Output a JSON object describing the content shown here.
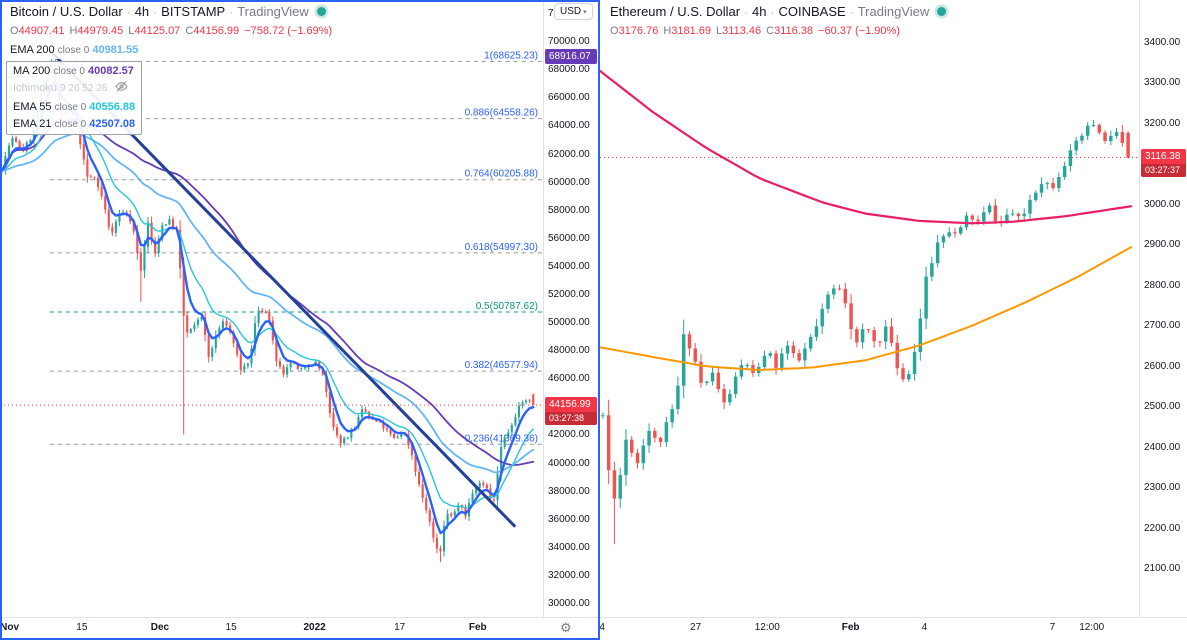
{
  "ui": {
    "sep": "·",
    "left": {
      "title": {
        "symbol": "Bitcoin / U.S. Dollar",
        "interval": "4h",
        "exchange": "BITSTAMP",
        "brand": "TradingView"
      },
      "ohlc": [
        {
          "k": "O",
          "v": "44907.41"
        },
        {
          "k": "H",
          "v": "44979.45"
        },
        {
          "k": "L",
          "v": "44125.07"
        },
        {
          "k": "C",
          "v": "44156.99"
        }
      ],
      "change": "−758.72 (−1.69%)",
      "indicator_row": {
        "label": "EMA 200",
        "params": "close 0",
        "value": "40981.55",
        "color": "#64b5f6"
      },
      "indicator_group": [
        {
          "label": "MA 200",
          "params": "close 0",
          "value": "40082.57",
          "color": "#673ab7"
        },
        {
          "label": "Ichimoku",
          "params": "9 26 52 26",
          "value": "",
          "color": "#c6c9d0"
        },
        {
          "label": "EMA 55",
          "params": "close 0",
          "value": "40556.88",
          "color": "#26c6da"
        },
        {
          "label": "EMA 21",
          "params": "close 0",
          "value": "42507.08",
          "color": "#2962ff"
        }
      ],
      "currency_button": "USD"
    },
    "right": {
      "title": {
        "symbol": "Ethereum / U.S. Dollar",
        "interval": "4h",
        "exchange": "COINBASE",
        "brand": "TradingView"
      },
      "ohlc": [
        {
          "k": "O",
          "v": "3176.76"
        },
        {
          "k": "H",
          "v": "3181.69"
        },
        {
          "k": "L",
          "v": "3113.46"
        },
        {
          "k": "C",
          "v": "3116.38"
        }
      ],
      "change": "−60.37 (−1.90%)"
    }
  },
  "chart_data": [
    {
      "type": "candlestick",
      "title": "Bitcoin / U.S. Dollar",
      "interval": "4h",
      "exchange": "BITSTAMP",
      "ohlc_current": {
        "open": 44907.41,
        "high": 44979.45,
        "low": 44125.07,
        "close": 44156.99
      },
      "change": -758.72,
      "change_pct": -1.69,
      "candle_colors": {
        "up": "#26a69a",
        "down": "#ef5350"
      },
      "y_axis": {
        "range": [
          29000,
          73000
        ],
        "ticks": {
          "min": 30000,
          "max": 72000,
          "step": 2000
        }
      },
      "x_labels": [
        {
          "text": "Nov",
          "f": 0.018,
          "bold": true
        },
        {
          "text": "15",
          "f": 0.153
        },
        {
          "text": "Dec",
          "f": 0.299,
          "bold": true
        },
        {
          "text": "15",
          "f": 0.432
        },
        {
          "text": "2022",
          "f": 0.588,
          "bold": true
        },
        {
          "text": "17",
          "f": 0.747
        },
        {
          "text": "Feb",
          "f": 0.893,
          "bold": true
        }
      ],
      "synthesis": {
        "num_candles": 150,
        "seed": 7,
        "volatility": 320,
        "close_anchors": [
          [
            0,
            61000
          ],
          [
            0.018,
            63200
          ],
          [
            0.04,
            62300
          ],
          [
            0.06,
            63500
          ],
          [
            0.075,
            66500
          ],
          [
            0.095,
            68700
          ],
          [
            0.11,
            64900
          ],
          [
            0.13,
            65200
          ],
          [
            0.145,
            63400
          ],
          [
            0.16,
            60400
          ],
          [
            0.175,
            60300
          ],
          [
            0.19,
            58800
          ],
          [
            0.205,
            56300
          ],
          [
            0.225,
            58100
          ],
          [
            0.245,
            57200
          ],
          [
            0.262,
            53600
          ],
          [
            0.275,
            57200
          ],
          [
            0.287,
            54700
          ],
          [
            0.3,
            56900
          ],
          [
            0.315,
            57300
          ],
          [
            0.33,
            56500
          ],
          [
            0.345,
            49200
          ],
          [
            0.36,
            49600
          ],
          [
            0.375,
            50700
          ],
          [
            0.39,
            47400
          ],
          [
            0.405,
            49400
          ],
          [
            0.42,
            50200
          ],
          [
            0.435,
            48800
          ],
          [
            0.45,
            46700
          ],
          [
            0.465,
            47000
          ],
          [
            0.48,
            50800
          ],
          [
            0.5,
            50900
          ],
          [
            0.515,
            47500
          ],
          [
            0.53,
            46200
          ],
          [
            0.545,
            47300
          ],
          [
            0.56,
            46500
          ],
          [
            0.575,
            47100
          ],
          [
            0.59,
            47200
          ],
          [
            0.605,
            46300
          ],
          [
            0.62,
            42900
          ],
          [
            0.635,
            41500
          ],
          [
            0.65,
            41900
          ],
          [
            0.665,
            42700
          ],
          [
            0.68,
            43900
          ],
          [
            0.695,
            43100
          ],
          [
            0.71,
            42900
          ],
          [
            0.725,
            42300
          ],
          [
            0.74,
            41700
          ],
          [
            0.755,
            42400
          ],
          [
            0.77,
            40900
          ],
          [
            0.785,
            38500
          ],
          [
            0.8,
            36500
          ],
          [
            0.815,
            34300
          ],
          [
            0.825,
            33600
          ],
          [
            0.835,
            36300
          ],
          [
            0.85,
            36500
          ],
          [
            0.862,
            37300
          ],
          [
            0.872,
            36300
          ],
          [
            0.885,
            37800
          ],
          [
            0.9,
            38600
          ],
          [
            0.915,
            38100
          ],
          [
            0.925,
            36900
          ],
          [
            0.94,
            41400
          ],
          [
            0.955,
            42400
          ],
          [
            0.97,
            43800
          ],
          [
            0.985,
            44600
          ],
          [
            1,
            44156.99
          ]
        ],
        "high_marks": [
          {
            "f": 0.095,
            "price": 68916.07
          }
        ],
        "low_marks": [
          {
            "f": 0.262,
            "price": 51500
          },
          {
            "f": 0.345,
            "price": 42050
          },
          {
            "f": 0.825,
            "price": 32970
          }
        ]
      },
      "moving_averages": [
        {
          "name": "MA 200",
          "period": 200,
          "type": "sma",
          "window": 52,
          "color": "#673ab7",
          "width": 1.8
        },
        {
          "name": "EMA 200",
          "period": 200,
          "type": "ema",
          "window": 40,
          "color": "#64b5f6",
          "width": 1.8
        },
        {
          "name": "EMA 55",
          "period": 55,
          "type": "ema",
          "window": 13,
          "color": "#26c6da",
          "width": 1.4
        },
        {
          "name": "EMA 21",
          "period": 21,
          "type": "ema",
          "window": 5,
          "color": "#2962ff",
          "width": 2.4
        }
      ],
      "trendline": {
        "from": [
          0.093,
          69400
        ],
        "to": [
          0.963,
          35500
        ],
        "color": "#24419a",
        "width": 3
      },
      "fib_retracement": {
        "start_f": 0.093,
        "line_color": "#9598a1",
        "levels": [
          {
            "ratio": 1,
            "price": 68625.23,
            "label": "1(68625.23)",
            "color": "#2962ff"
          },
          {
            "ratio": 0.886,
            "price": 64558.26,
            "label": "0.886(64558.26)",
            "color": "#2962ff"
          },
          {
            "ratio": 0.764,
            "price": 60205.88,
            "label": "0.764(60205.88)",
            "color": "#2962ff"
          },
          {
            "ratio": 0.618,
            "price": 54997.3,
            "label": "0.618(54997.30)",
            "color": "#2962ff"
          },
          {
            "ratio": 0.5,
            "price": 50787.62,
            "label": "0.5(50787.62)",
            "color": "#089981"
          },
          {
            "ratio": 0.382,
            "price": 46577.94,
            "label": "0.382(46577.94)",
            "color": "#2962ff"
          },
          {
            "ratio": 0.236,
            "price": 41369.36,
            "label": "0.236(41369.36)",
            "color": "#2962ff"
          }
        ]
      },
      "last_price": {
        "price": 44156.99,
        "label": "44156.99",
        "countdown": "03:27:38",
        "color": "#f23645"
      },
      "high_label": {
        "price": 68916.07,
        "label": "68916.07",
        "color": "#673ab7"
      }
    },
    {
      "type": "candlestick",
      "title": "Ethereum / U.S. Dollar",
      "interval": "4h",
      "exchange": "COINBASE",
      "ohlc_current": {
        "open": 3176.76,
        "high": 3181.69,
        "low": 3113.46,
        "close": 3116.38
      },
      "change": -60.37,
      "change_pct": -1.9,
      "candle_colors": {
        "up": "#26a69a",
        "down": "#ef5350"
      },
      "y_axis": {
        "range": [
          1980,
          3505
        ],
        "ticks": {
          "min": 2100,
          "max": 3400,
          "step": 100
        }
      },
      "x_labels": [
        {
          "text": "4",
          "f": 0.004
        },
        {
          "text": "27",
          "f": 0.18
        },
        {
          "text": "12:00",
          "f": 0.315
        },
        {
          "text": "Feb",
          "f": 0.472,
          "bold": true
        },
        {
          "text": "4",
          "f": 0.611
        },
        {
          "text": "7",
          "f": 0.852
        },
        {
          "text": "12:00",
          "f": 0.926
        }
      ],
      "synthesis": {
        "num_candles": 92,
        "seed": 11,
        "volatility": 22,
        "close_anchors": [
          [
            0,
            2480
          ],
          [
            0.012,
            2330
          ],
          [
            0.025,
            2270
          ],
          [
            0.045,
            2430
          ],
          [
            0.065,
            2360
          ],
          [
            0.085,
            2450
          ],
          [
            0.105,
            2405
          ],
          [
            0.125,
            2465
          ],
          [
            0.14,
            2520
          ],
          [
            0.155,
            2685
          ],
          [
            0.17,
            2640
          ],
          [
            0.19,
            2545
          ],
          [
            0.21,
            2585
          ],
          [
            0.23,
            2505
          ],
          [
            0.25,
            2560
          ],
          [
            0.27,
            2620
          ],
          [
            0.29,
            2565
          ],
          [
            0.31,
            2640
          ],
          [
            0.33,
            2605
          ],
          [
            0.35,
            2655
          ],
          [
            0.37,
            2605
          ],
          [
            0.39,
            2655
          ],
          [
            0.41,
            2705
          ],
          [
            0.43,
            2780
          ],
          [
            0.45,
            2800
          ],
          [
            0.465,
            2755
          ],
          [
            0.48,
            2645
          ],
          [
            0.5,
            2700
          ],
          [
            0.52,
            2655
          ],
          [
            0.54,
            2700
          ],
          [
            0.555,
            2620
          ],
          [
            0.575,
            2560
          ],
          [
            0.595,
            2645
          ],
          [
            0.615,
            2810
          ],
          [
            0.635,
            2900
          ],
          [
            0.655,
            2945
          ],
          [
            0.675,
            2920
          ],
          [
            0.695,
            2975
          ],
          [
            0.715,
            2955
          ],
          [
            0.735,
            2995
          ],
          [
            0.755,
            2950
          ],
          [
            0.775,
            2985
          ],
          [
            0.795,
            2955
          ],
          [
            0.815,
            3020
          ],
          [
            0.835,
            3060
          ],
          [
            0.855,
            3045
          ],
          [
            0.875,
            3095
          ],
          [
            0.895,
            3135
          ],
          [
            0.915,
            3175
          ],
          [
            0.935,
            3200
          ],
          [
            0.955,
            3150
          ],
          [
            0.975,
            3185
          ],
          [
            1,
            3116.38
          ]
        ],
        "high_marks": [
          {
            "f": 0.935,
            "price": 3209
          }
        ],
        "low_marks": [
          {
            "f": 0.02,
            "price": 2162
          }
        ]
      },
      "moving_averages": [
        {
          "name": "slow-ma",
          "color": "#e91e63",
          "width": 2.2,
          "points": [
            [
              0,
              3330
            ],
            [
              0.1,
              3228
            ],
            [
              0.2,
              3140
            ],
            [
              0.3,
              3065
            ],
            [
              0.42,
              3005
            ],
            [
              0.5,
              2978
            ],
            [
              0.6,
              2960
            ],
            [
              0.7,
              2954
            ],
            [
              0.78,
              2958
            ],
            [
              0.88,
              2972
            ],
            [
              1,
              2996
            ]
          ]
        },
        {
          "name": "mid-ma",
          "color": "#ff9800",
          "width": 2,
          "points": [
            [
              0,
              2648
            ],
            [
              0.1,
              2624
            ],
            [
              0.2,
              2601
            ],
            [
              0.3,
              2592
            ],
            [
              0.4,
              2598
            ],
            [
              0.5,
              2616
            ],
            [
              0.6,
              2652
            ],
            [
              0.7,
              2701
            ],
            [
              0.8,
              2758
            ],
            [
              0.9,
              2822
            ],
            [
              1,
              2895
            ]
          ]
        }
      ],
      "last_price": {
        "price": 3116.38,
        "label": "3116.38",
        "countdown": "03:27:37",
        "color": "#f23645"
      }
    }
  ]
}
